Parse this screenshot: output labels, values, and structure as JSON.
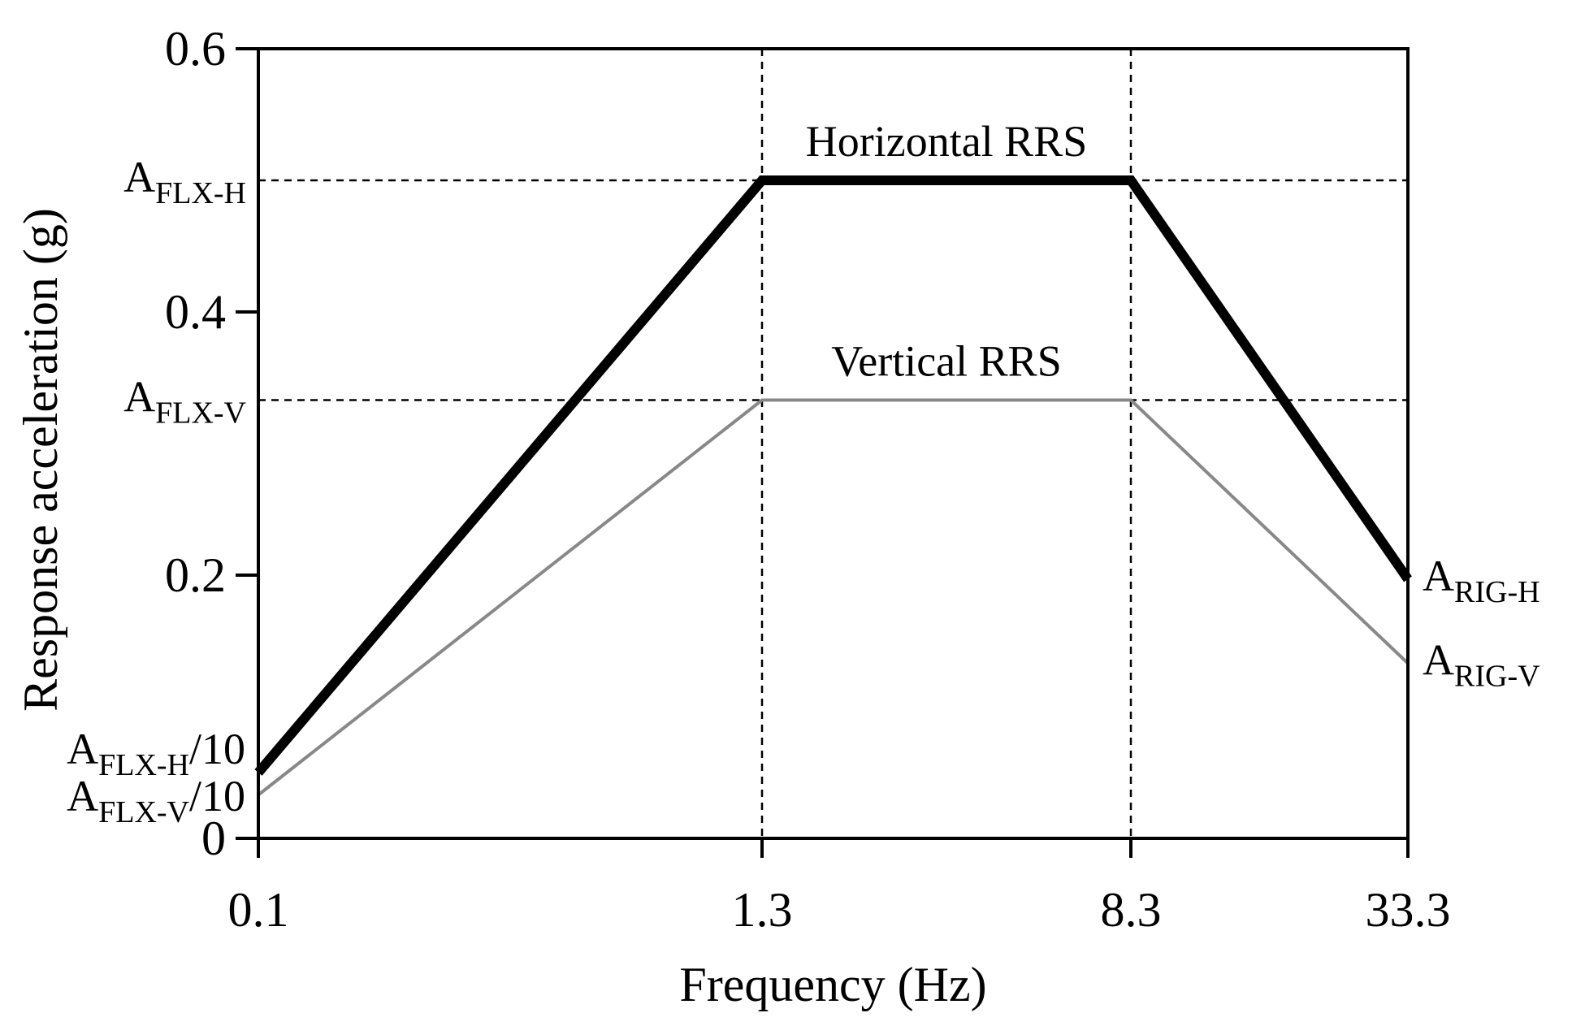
{
  "chart_data": {
    "type": "line",
    "xlabel": "Frequency (Hz)",
    "ylabel": "Response acceleration (g)",
    "x_scale": "log",
    "xlim": [
      0.1,
      33.3
    ],
    "ylim": [
      0,
      0.6
    ],
    "x_ticks": [
      0.1,
      1.3,
      8.3,
      33.3
    ],
    "x_tick_labels": [
      "0.1",
      "1.3",
      "8.3",
      "33.3"
    ],
    "y_ticks": [
      0,
      0.2,
      0.4,
      0.6
    ],
    "y_tick_labels": [
      "0",
      "0.2",
      "0.4",
      "0.6"
    ],
    "grid": false,
    "reference_lines": [
      {
        "axis": "x",
        "value": 1.3
      },
      {
        "axis": "x",
        "value": 8.3
      },
      {
        "axis": "y",
        "value": 0.5
      },
      {
        "axis": "y",
        "value": 0.333
      }
    ],
    "series": [
      {
        "name": "Horizontal RRS",
        "color": "#000000",
        "x": [
          0.1,
          1.3,
          8.3,
          33.3
        ],
        "y": [
          0.05,
          0.5,
          0.5,
          0.197
        ]
      },
      {
        "name": "Vertical RRS",
        "color": "#888888",
        "x": [
          0.1,
          1.3,
          8.3,
          33.3
        ],
        "y": [
          0.033,
          0.333,
          0.333,
          0.133
        ]
      }
    ],
    "annotations": [
      {
        "main": "A",
        "sub": "FLX-H",
        "suffix": "",
        "side": "left",
        "y": 0.5
      },
      {
        "main": "A",
        "sub": "FLX-V",
        "suffix": "",
        "side": "left",
        "y": 0.333
      },
      {
        "main": "A",
        "sub": "FLX-H",
        "suffix": "/10",
        "side": "left",
        "y": 0.05
      },
      {
        "main": "A",
        "sub": "FLX-V",
        "suffix": "/10",
        "side": "left",
        "y": 0.033
      },
      {
        "main": "A",
        "sub": "RIG-H",
        "suffix": "",
        "side": "right",
        "y": 0.197
      },
      {
        "main": "A",
        "sub": "RIG-V",
        "suffix": "",
        "side": "right",
        "y": 0.133
      }
    ]
  }
}
